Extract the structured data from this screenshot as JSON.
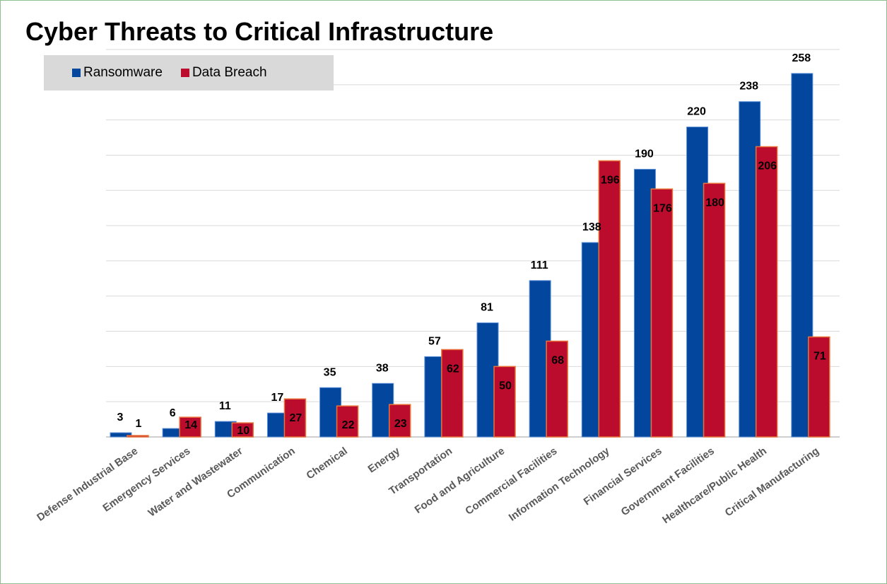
{
  "chart_data": {
    "type": "bar",
    "title": "Cyber Threats to Critical Infrastructure",
    "xlabel": "",
    "ylabel": "",
    "ylim": [
      0,
      275
    ],
    "grid": true,
    "legend_position": "top-left",
    "categories": [
      "Defense Industrial Base",
      "Emergency Services",
      "Water and Wastewater",
      "Communication",
      "Chemical",
      "Energy",
      "Transportation",
      "Food and Agriculture",
      "Commercial Facilities",
      "Information Technology",
      "Financial Services",
      "Government Facilities",
      "Healthcare/Public Health",
      "Critical Manufacturing"
    ],
    "series": [
      {
        "name": "Ransomware",
        "color": "#02469e",
        "values": [
          3,
          6,
          11,
          17,
          35,
          38,
          57,
          81,
          111,
          138,
          190,
          220,
          238,
          258
        ]
      },
      {
        "name": "Data Breach",
        "color": "#bc0c2d",
        "values": [
          1,
          14,
          10,
          27,
          22,
          23,
          62,
          50,
          68,
          196,
          176,
          180,
          206,
          71
        ]
      }
    ]
  }
}
